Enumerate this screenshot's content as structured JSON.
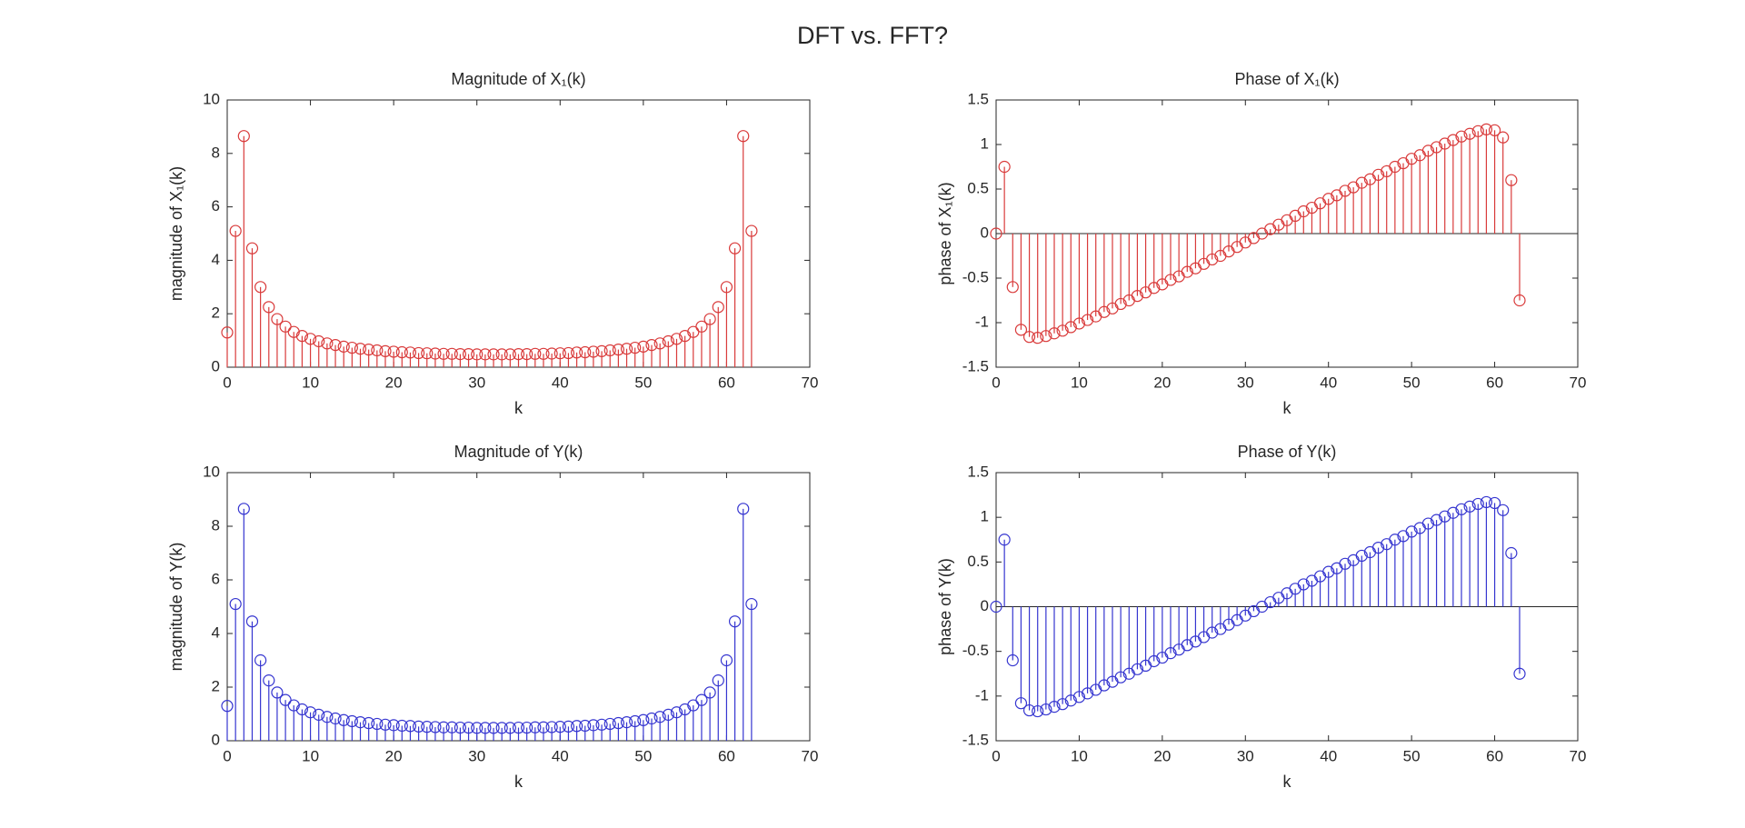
{
  "title": "DFT vs. FFT?",
  "chart_data": [
    {
      "type": "stem",
      "title": "Magnitude of X₁(k)",
      "xlabel": "k",
      "ylabel": "magnitude of X₁(k)",
      "color": "#d93a3a",
      "xlim": [
        0,
        70
      ],
      "xticks": [
        0,
        10,
        20,
        30,
        40,
        50,
        60,
        70
      ],
      "ylim": [
        0,
        10
      ],
      "yticks": [
        0,
        2,
        4,
        6,
        8,
        10
      ],
      "x": [
        0,
        1,
        2,
        3,
        4,
        5,
        6,
        7,
        8,
        9,
        10,
        11,
        12,
        13,
        14,
        15,
        16,
        17,
        18,
        19,
        20,
        21,
        22,
        23,
        24,
        25,
        26,
        27,
        28,
        29,
        30,
        31,
        32,
        33,
        34,
        35,
        36,
        37,
        38,
        39,
        40,
        41,
        42,
        43,
        44,
        45,
        46,
        47,
        48,
        49,
        50,
        51,
        52,
        53,
        54,
        55,
        56,
        57,
        58,
        59,
        60,
        61,
        62,
        63
      ],
      "values": [
        1.3,
        5.1,
        8.65,
        4.45,
        3.0,
        2.25,
        1.8,
        1.52,
        1.32,
        1.17,
        1.06,
        0.97,
        0.89,
        0.83,
        0.77,
        0.73,
        0.69,
        0.66,
        0.63,
        0.6,
        0.58,
        0.56,
        0.55,
        0.53,
        0.52,
        0.51,
        0.5,
        0.5,
        0.49,
        0.49,
        0.48,
        0.48,
        0.48,
        0.48,
        0.48,
        0.49,
        0.49,
        0.5,
        0.5,
        0.51,
        0.52,
        0.53,
        0.55,
        0.56,
        0.58,
        0.6,
        0.63,
        0.66,
        0.69,
        0.73,
        0.77,
        0.83,
        0.89,
        0.97,
        1.06,
        1.17,
        1.32,
        1.52,
        1.8,
        2.25,
        3.0,
        4.45,
        8.65,
        5.1
      ]
    },
    {
      "type": "stem",
      "title": "Phase of X₁(k)",
      "xlabel": "k",
      "ylabel": "phase of X₁(k)",
      "color": "#d93a3a",
      "xlim": [
        0,
        70
      ],
      "xticks": [
        0,
        10,
        20,
        30,
        40,
        50,
        60,
        70
      ],
      "ylim": [
        -1.5,
        1.5
      ],
      "yticks": [
        -1.5,
        -1,
        -0.5,
        0,
        0.5,
        1,
        1.5
      ],
      "x": [
        0,
        1,
        2,
        3,
        4,
        5,
        6,
        7,
        8,
        9,
        10,
        11,
        12,
        13,
        14,
        15,
        16,
        17,
        18,
        19,
        20,
        21,
        22,
        23,
        24,
        25,
        26,
        27,
        28,
        29,
        30,
        31,
        32,
        33,
        34,
        35,
        36,
        37,
        38,
        39,
        40,
        41,
        42,
        43,
        44,
        45,
        46,
        47,
        48,
        49,
        50,
        51,
        52,
        53,
        54,
        55,
        56,
        57,
        58,
        59,
        60,
        61,
        62,
        63
      ],
      "values": [
        0,
        0.75,
        -0.6,
        -1.08,
        -1.16,
        -1.17,
        -1.15,
        -1.12,
        -1.09,
        -1.05,
        -1.01,
        -0.97,
        -0.93,
        -0.88,
        -0.84,
        -0.79,
        -0.75,
        -0.7,
        -0.66,
        -0.61,
        -0.57,
        -0.52,
        -0.48,
        -0.43,
        -0.39,
        -0.34,
        -0.29,
        -0.25,
        -0.2,
        -0.15,
        -0.1,
        -0.05,
        0,
        0.05,
        0.1,
        0.15,
        0.2,
        0.25,
        0.29,
        0.34,
        0.39,
        0.43,
        0.48,
        0.52,
        0.57,
        0.61,
        0.66,
        0.7,
        0.75,
        0.79,
        0.84,
        0.88,
        0.93,
        0.97,
        1.01,
        1.05,
        1.09,
        1.12,
        1.15,
        1.17,
        1.16,
        1.08,
        0.6,
        -0.75
      ]
    },
    {
      "type": "stem",
      "title": "Magnitude of Y(k)",
      "xlabel": "k",
      "ylabel": "magnitude of Y(k)",
      "color": "#3535d0",
      "xlim": [
        0,
        70
      ],
      "xticks": [
        0,
        10,
        20,
        30,
        40,
        50,
        60,
        70
      ],
      "ylim": [
        0,
        10
      ],
      "yticks": [
        0,
        2,
        4,
        6,
        8,
        10
      ],
      "x": [
        0,
        1,
        2,
        3,
        4,
        5,
        6,
        7,
        8,
        9,
        10,
        11,
        12,
        13,
        14,
        15,
        16,
        17,
        18,
        19,
        20,
        21,
        22,
        23,
        24,
        25,
        26,
        27,
        28,
        29,
        30,
        31,
        32,
        33,
        34,
        35,
        36,
        37,
        38,
        39,
        40,
        41,
        42,
        43,
        44,
        45,
        46,
        47,
        48,
        49,
        50,
        51,
        52,
        53,
        54,
        55,
        56,
        57,
        58,
        59,
        60,
        61,
        62,
        63
      ],
      "values": [
        1.3,
        5.1,
        8.65,
        4.45,
        3.0,
        2.25,
        1.8,
        1.52,
        1.32,
        1.17,
        1.06,
        0.97,
        0.89,
        0.83,
        0.77,
        0.73,
        0.69,
        0.66,
        0.63,
        0.6,
        0.58,
        0.56,
        0.55,
        0.53,
        0.52,
        0.51,
        0.5,
        0.5,
        0.49,
        0.49,
        0.48,
        0.48,
        0.48,
        0.48,
        0.48,
        0.49,
        0.49,
        0.5,
        0.5,
        0.51,
        0.52,
        0.53,
        0.55,
        0.56,
        0.58,
        0.6,
        0.63,
        0.66,
        0.69,
        0.73,
        0.77,
        0.83,
        0.89,
        0.97,
        1.06,
        1.17,
        1.32,
        1.52,
        1.8,
        2.25,
        3.0,
        4.45,
        8.65,
        5.1
      ]
    },
    {
      "type": "stem",
      "title": "Phase of Y(k)",
      "xlabel": "k",
      "ylabel": "phase of Y(k)",
      "color": "#3535d0",
      "xlim": [
        0,
        70
      ],
      "xticks": [
        0,
        10,
        20,
        30,
        40,
        50,
        60,
        70
      ],
      "ylim": [
        -1.5,
        1.5
      ],
      "yticks": [
        -1.5,
        -1,
        -0.5,
        0,
        0.5,
        1,
        1.5
      ],
      "x": [
        0,
        1,
        2,
        3,
        4,
        5,
        6,
        7,
        8,
        9,
        10,
        11,
        12,
        13,
        14,
        15,
        16,
        17,
        18,
        19,
        20,
        21,
        22,
        23,
        24,
        25,
        26,
        27,
        28,
        29,
        30,
        31,
        32,
        33,
        34,
        35,
        36,
        37,
        38,
        39,
        40,
        41,
        42,
        43,
        44,
        45,
        46,
        47,
        48,
        49,
        50,
        51,
        52,
        53,
        54,
        55,
        56,
        57,
        58,
        59,
        60,
        61,
        62,
        63
      ],
      "values": [
        0,
        0.75,
        -0.6,
        -1.08,
        -1.16,
        -1.17,
        -1.15,
        -1.12,
        -1.09,
        -1.05,
        -1.01,
        -0.97,
        -0.93,
        -0.88,
        -0.84,
        -0.79,
        -0.75,
        -0.7,
        -0.66,
        -0.61,
        -0.57,
        -0.52,
        -0.48,
        -0.43,
        -0.39,
        -0.34,
        -0.29,
        -0.25,
        -0.2,
        -0.15,
        -0.1,
        -0.05,
        0,
        0.05,
        0.1,
        0.15,
        0.2,
        0.25,
        0.29,
        0.34,
        0.39,
        0.43,
        0.48,
        0.52,
        0.57,
        0.61,
        0.66,
        0.7,
        0.75,
        0.79,
        0.84,
        0.88,
        0.93,
        0.97,
        1.01,
        1.05,
        1.09,
        1.12,
        1.15,
        1.17,
        1.16,
        1.08,
        0.6,
        -0.75
      ]
    }
  ]
}
